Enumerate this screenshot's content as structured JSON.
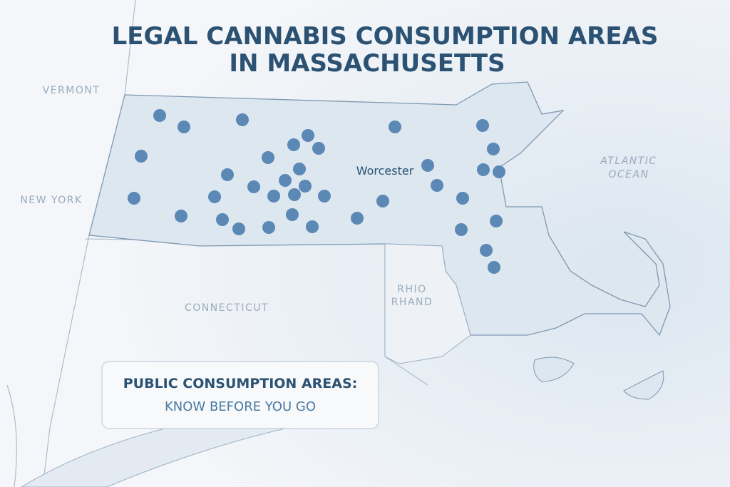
{
  "title": [
    "LEGAL CANNABIS CONSUMPTION AREAS",
    "IN MASSACHUSETTS"
  ],
  "map_labels": {
    "states": [
      "VERMONT",
      "NEW YORK",
      "CONNECTICUT"
    ],
    "rhode_island": [
      "RHIO",
      "RHAND"
    ],
    "city": "Worcester",
    "ocean": [
      "ATLANTIC",
      "OCEAN"
    ]
  },
  "callout": {
    "heading": "PUBLIC CONSUMPTION AREAS:",
    "subheading": "KNOW BEFORE YOU GO"
  }
}
